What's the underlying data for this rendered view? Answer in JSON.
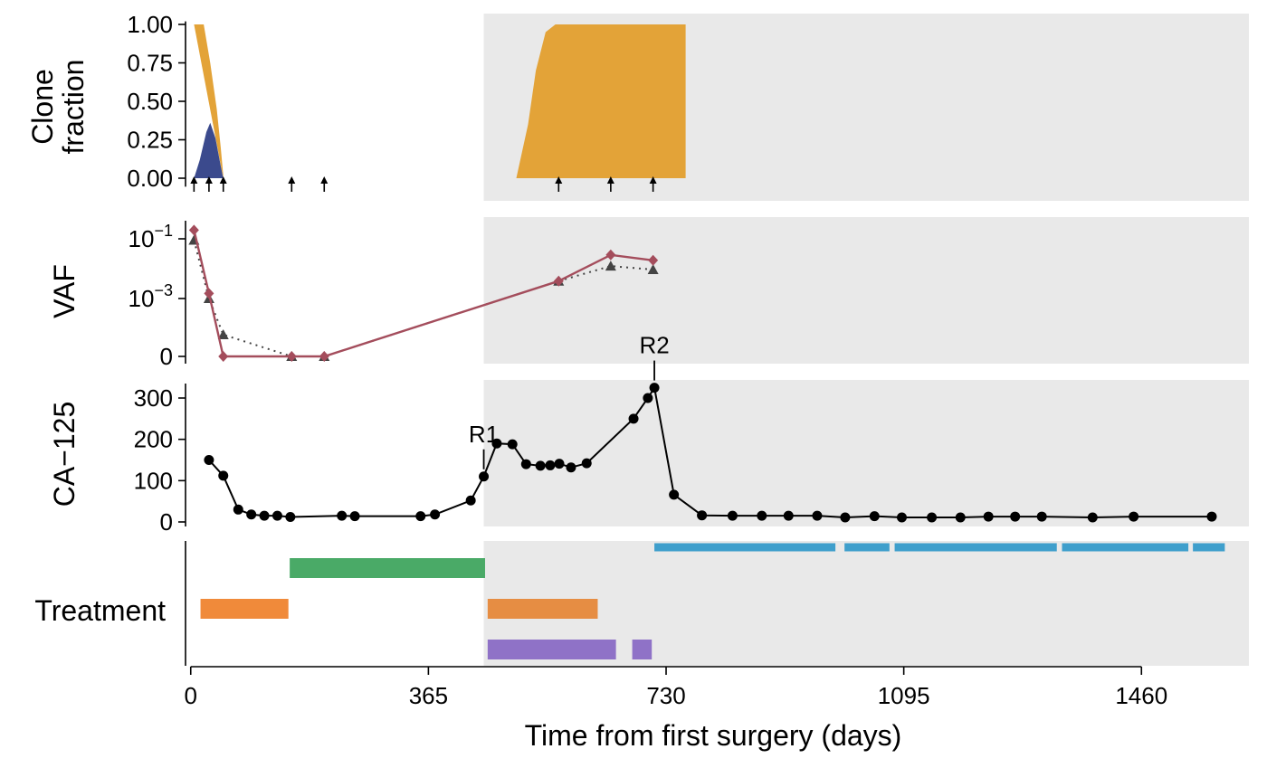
{
  "chart_data": {
    "type": "multi-panel",
    "x_label": "Time from first surgery (days)",
    "x_ticks": [
      "0",
      "365",
      "730",
      "1095",
      "1460"
    ],
    "x_tick_values": [
      0,
      365,
      730,
      1095,
      1460
    ],
    "x_range": [
      -8,
      1625
    ],
    "shaded_from": 450,
    "panels": {
      "clone": {
        "ylabel_lines": [
          "Clone",
          "fraction"
        ],
        "y_ticks": [
          "0.00",
          "0.25",
          "0.50",
          "0.75",
          "1.00"
        ],
        "y_tick_values": [
          0,
          0.25,
          0.5,
          0.75,
          1.0
        ],
        "y_range": [
          -0.02,
          1.02
        ],
        "series": [
          {
            "color": "#e3a338",
            "segments": [
              [
                [
                  5,
                  1.0
                ],
                [
                  20,
                  1.0
                ],
                [
                  30,
                  0.75
                ],
                [
                  40,
                  0.45
                ],
                [
                  46,
                  0.2
                ],
                [
                  50,
                  0.02
                ],
                [
                  50,
                  0
                ]
              ],
              [
                [
                  500,
                  0
                ],
                [
                  518,
                  0.35
                ],
                [
                  530,
                  0.7
                ],
                [
                  545,
                  0.95
                ],
                [
                  560,
                  1.0
                ],
                [
                  760,
                  1.0
                ],
                [
                  760,
                  0
                ]
              ]
            ]
          },
          {
            "color": "#3b4a8d",
            "segments": [
              [
                [
                  5,
                  0
                ],
                [
                  14,
                  0.12
                ],
                [
                  24,
                  0.3
                ],
                [
                  30,
                  0.36
                ],
                [
                  38,
                  0.26
                ],
                [
                  46,
                  0.08
                ],
                [
                  50,
                  0
                ]
              ]
            ]
          }
        ],
        "sample_arrows": [
          5,
          28,
          50,
          155,
          205,
          565,
          645,
          710
        ]
      },
      "vaf": {
        "ylabel": "VAF",
        "y_ticks": [
          {
            "base": "10",
            "exp": "−1",
            "pos": 0.1
          },
          {
            "base": "10",
            "exp": "−3",
            "pos": 0.001
          },
          {
            "label": "0",
            "pos": 0
          }
        ],
        "series": [
          {
            "color": "#a44d5c",
            "marker": "diamond",
            "style": "solid",
            "points": [
              [
                5,
                0.2
              ],
              [
                28,
                0.0015
              ],
              [
                50,
                0
              ],
              [
                155,
                0
              ],
              [
                205,
                0
              ],
              [
                565,
                0.004
              ],
              [
                645,
                0.03
              ],
              [
                710,
                0.02
              ]
            ]
          },
          {
            "color": "#444444",
            "marker": "triangle",
            "style": "dotted",
            "points": [
              [
                5,
                0.09
              ],
              [
                28,
                0.001
              ],
              [
                50,
                5e-05
              ],
              [
                155,
                0
              ],
              [
                205,
                0
              ],
              [
                565,
                0.004
              ],
              [
                645,
                0.013
              ],
              [
                710,
                0.01
              ]
            ]
          }
        ]
      },
      "ca125": {
        "ylabel": "CA−125",
        "y_ticks": [
          "0",
          "100",
          "200",
          "300"
        ],
        "y_tick_values": [
          0,
          100,
          200,
          300
        ],
        "y_range": [
          -10,
          335
        ],
        "points": [
          [
            28,
            150
          ],
          [
            50,
            112
          ],
          [
            73,
            30
          ],
          [
            93,
            18
          ],
          [
            113,
            15
          ],
          [
            133,
            15
          ],
          [
            153,
            12
          ],
          [
            232,
            15
          ],
          [
            252,
            14
          ],
          [
            353,
            14
          ],
          [
            375,
            18
          ],
          [
            430,
            52
          ],
          [
            450,
            110
          ],
          [
            470,
            190
          ],
          [
            494,
            188
          ],
          [
            515,
            140
          ],
          [
            537,
            136
          ],
          [
            552,
            137
          ],
          [
            566,
            141
          ],
          [
            584,
            132
          ],
          [
            608,
            142
          ],
          [
            680,
            250
          ],
          [
            702,
            300
          ],
          [
            712,
            325
          ],
          [
            742,
            66
          ],
          [
            785,
            16
          ],
          [
            832,
            15
          ],
          [
            877,
            15
          ],
          [
            918,
            15
          ],
          [
            962,
            15
          ],
          [
            1005,
            11
          ],
          [
            1050,
            14
          ],
          [
            1092,
            11
          ],
          [
            1138,
            11
          ],
          [
            1182,
            11
          ],
          [
            1225,
            13
          ],
          [
            1266,
            13
          ],
          [
            1307,
            13
          ],
          [
            1385,
            11
          ],
          [
            1448,
            13
          ],
          [
            1568,
            13
          ]
        ],
        "annotations": [
          {
            "label": "R1",
            "x": 450,
            "y": 110
          },
          {
            "label": "R2",
            "x": 712,
            "y": 325
          }
        ]
      },
      "treatment": {
        "ylabel": "Treatment",
        "bars": [
          {
            "color": "#3f9fcc",
            "row": 0,
            "start": 712,
            "end": 990
          },
          {
            "color": "#3f9fcc",
            "row": 0,
            "start": 1004,
            "end": 1073
          },
          {
            "color": "#3f9fcc",
            "row": 0,
            "start": 1081,
            "end": 1330
          },
          {
            "color": "#3f9fcc",
            "row": 0,
            "start": 1338,
            "end": 1532
          },
          {
            "color": "#3f9fcc",
            "row": 0,
            "start": 1539,
            "end": 1588
          },
          {
            "color": "#4aaa67",
            "row": 1,
            "start": 152,
            "end": 452
          },
          {
            "color": "#f08a3a",
            "row": 2,
            "start": 15,
            "end": 150
          },
          {
            "color": "#e68d43",
            "row": 2,
            "start": 456,
            "end": 625
          },
          {
            "color": "#8f72c7",
            "row": 3,
            "start": 456,
            "end": 653
          },
          {
            "color": "#8f72c7",
            "row": 3,
            "start": 678,
            "end": 708
          }
        ]
      }
    }
  }
}
